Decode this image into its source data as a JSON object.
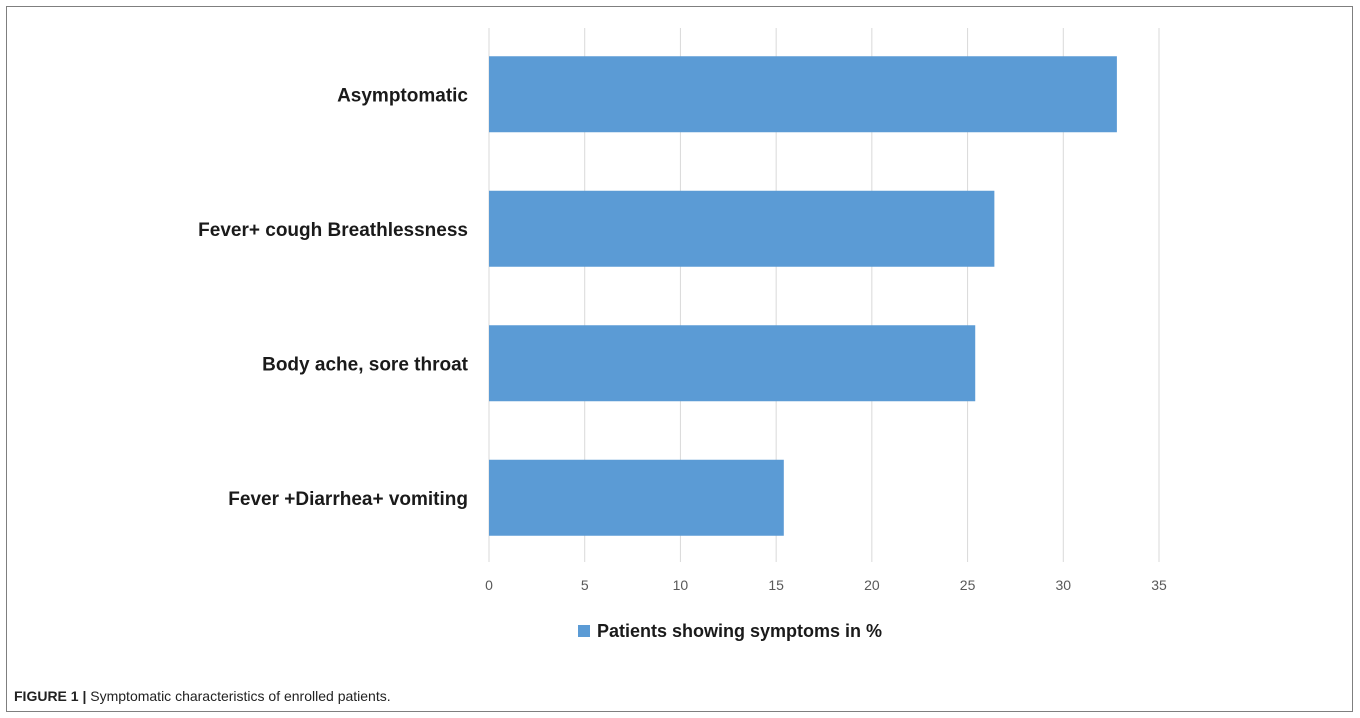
{
  "chart_data": {
    "type": "bar",
    "orientation": "horizontal",
    "categories": [
      "Asymptomatic",
      "Fever+ cough Breathlessness",
      "Body ache, sore throat",
      "Fever +Diarrhea+ vomiting"
    ],
    "series": [
      {
        "name": "Patients showing symptoms in %",
        "values": [
          32.8,
          26.4,
          25.4,
          15.4
        ],
        "color": "#5b9bd5"
      }
    ],
    "xlim": [
      0,
      35
    ],
    "xticks": [
      "0",
      "5",
      "10",
      "15",
      "20",
      "25",
      "30",
      "35"
    ],
    "grid": "vertical",
    "legend": "bottom-center"
  },
  "caption": {
    "label": "FIGURE 1 |",
    "text": "Symptomatic characteristics of enrolled patients."
  }
}
